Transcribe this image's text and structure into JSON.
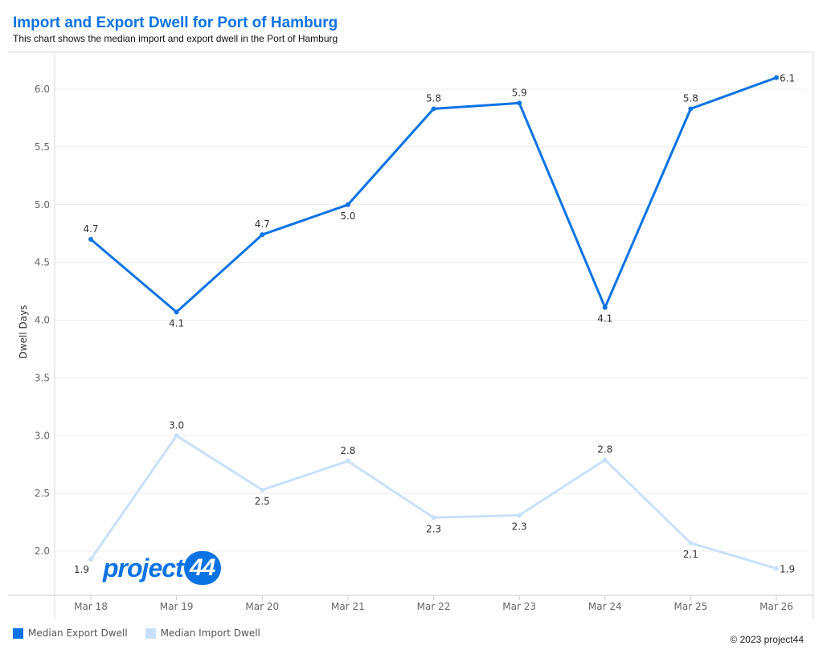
{
  "header": {
    "title": "Import and Export Dwell for Port of Hamburg",
    "subtitle": "This chart shows the median import and export dwell in the Port of Hamburg"
  },
  "logo": {
    "text": "project",
    "badge": "44"
  },
  "footer": {
    "copyright": "© 2023 project44"
  },
  "colors": {
    "export": "#0b73e3",
    "import": "#c9e0fa",
    "grid": "#ececec",
    "axis": "#cccccc"
  },
  "chart_data": {
    "type": "line",
    "title": "Import and Export Dwell for Port of Hamburg",
    "subtitle": "This chart shows the median import and export dwell in the Port of Hamburg",
    "xlabel": "",
    "ylabel": "Dwell Days",
    "categories": [
      "Mar 18",
      "Mar 19",
      "Mar 20",
      "Mar 21",
      "Mar 22",
      "Mar 23",
      "Mar 24",
      "Mar 25",
      "Mar 26"
    ],
    "ylim": [
      1.62,
      6.32
    ],
    "yticks": [
      "2.0",
      "2.5",
      "3.0",
      "3.5",
      "4.0",
      "4.5",
      "5.0",
      "5.5",
      "6.0"
    ],
    "grid": true,
    "legend_position": "bottom-left",
    "series": [
      {
        "name": "Median Export Dwell",
        "color": "#0b73e3",
        "values": [
          4.7,
          4.07,
          4.74,
          5.0,
          5.83,
          5.88,
          4.11,
          5.83,
          6.1
        ],
        "labels": [
          "4.7",
          "4.1",
          "4.7",
          "5.0",
          "5.8",
          "5.9",
          "4.1",
          "5.8",
          "6.1"
        ],
        "label_position": [
          "above",
          "below",
          "above",
          "below",
          "above",
          "above",
          "below",
          "above",
          "right"
        ]
      },
      {
        "name": "Median Import Dwell",
        "color": "#c9e0fa",
        "values": [
          1.93,
          3.0,
          2.53,
          2.78,
          2.29,
          2.31,
          2.79,
          2.07,
          1.85
        ],
        "labels": [
          "1.9",
          "3.0",
          "2.5",
          "2.8",
          "2.3",
          "2.3",
          "2.8",
          "2.1",
          "1.9"
        ],
        "label_position": [
          "left",
          "above",
          "below",
          "above",
          "below",
          "below",
          "above",
          "below",
          "right"
        ]
      }
    ]
  }
}
